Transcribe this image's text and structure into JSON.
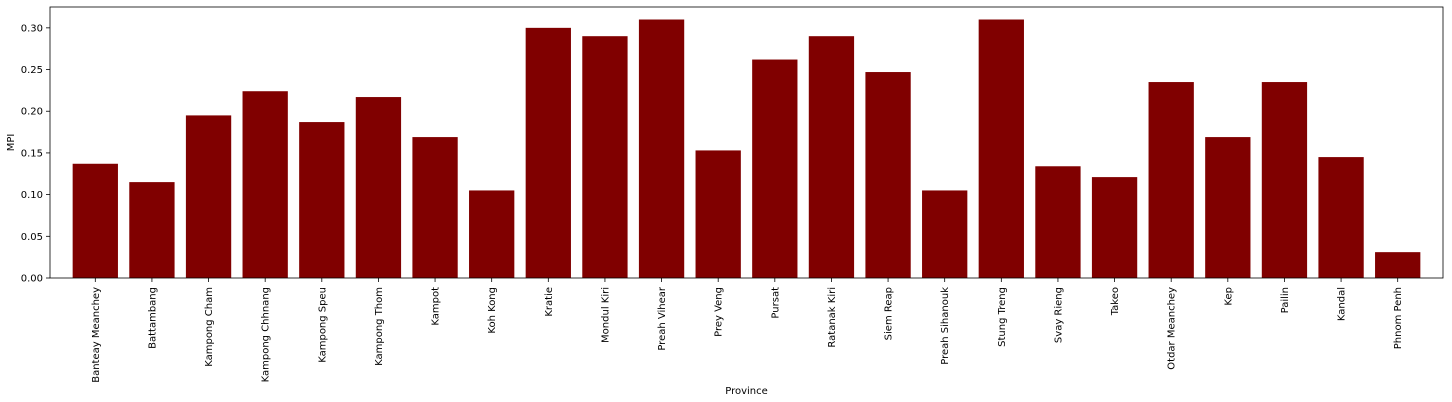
{
  "chart_data": {
    "type": "bar",
    "title": "",
    "xlabel": "Province",
    "ylabel": "MPI",
    "ylim": [
      0,
      0.325
    ],
    "yticks": [
      0.0,
      0.05,
      0.1,
      0.15,
      0.2,
      0.25,
      0.3
    ],
    "ytick_labels": [
      "0.00",
      "0.05",
      "0.10",
      "0.15",
      "0.20",
      "0.25",
      "0.30"
    ],
    "bar_color": "#800000",
    "grid": false,
    "categories": [
      "Banteay Meanchey",
      "Battambang",
      "Kampong Cham",
      "Kampong Chhnang",
      "Kampong Speu",
      "Kampong Thom",
      "Kampot",
      "Koh Kong",
      "Kratie",
      "Mondul Kiri",
      "Preah Vihear",
      "Prey Veng",
      "Pursat",
      "Ratanak Kiri",
      "Siem Reap",
      "Preah Sihanouk",
      "Stung Treng",
      "Svay Rieng",
      "Takeo",
      "Otdar Meanchey",
      "Kep",
      "Pailin",
      "Kandal",
      "Phnom Penh"
    ],
    "values": [
      0.137,
      0.115,
      0.195,
      0.224,
      0.187,
      0.217,
      0.169,
      0.105,
      0.3,
      0.29,
      0.31,
      0.153,
      0.262,
      0.29,
      0.247,
      0.105,
      0.31,
      0.134,
      0.121,
      0.235,
      0.169,
      0.235,
      0.145,
      0.031
    ]
  }
}
